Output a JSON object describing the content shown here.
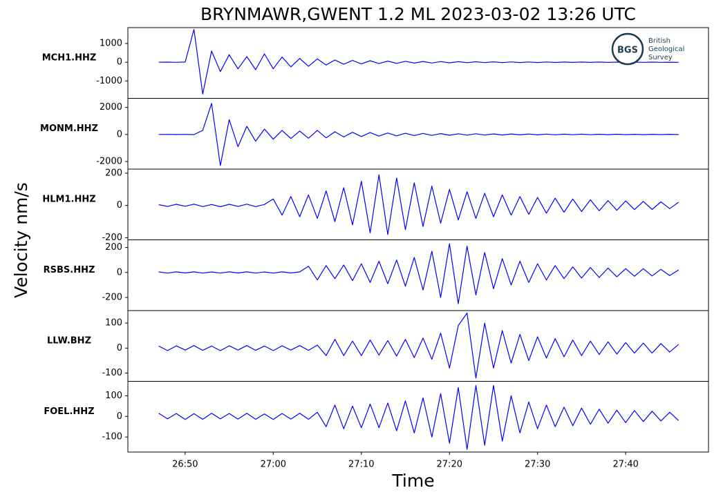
{
  "chart_data": {
    "type": "line",
    "title": "BRYNMAWR,GWENT 1.2 ML   2023-03-02 13:26 UTC",
    "x_label": "Time",
    "y_label": "Velocity nm/s",
    "color": "#0000ff",
    "x": [
      47,
      48,
      49,
      50,
      51,
      52,
      53,
      54,
      55,
      56,
      57,
      58,
      59,
      60,
      61,
      62,
      63,
      64,
      65,
      66,
      67,
      68,
      69,
      70,
      71,
      72,
      73,
      74,
      75,
      76,
      77,
      78,
      79,
      80,
      81,
      82,
      83,
      84,
      85,
      86,
      87,
      88,
      89,
      90,
      91,
      92,
      93,
      94,
      95,
      96,
      97,
      98,
      99,
      100,
      101,
      102,
      103,
      104,
      105,
      106
    ],
    "xlim": [
      43.5,
      109.4
    ],
    "xticks": [
      {
        "value": 50,
        "label": "26:50"
      },
      {
        "value": 60,
        "label": "27:00"
      },
      {
        "value": 70,
        "label": "27:10"
      },
      {
        "value": 80,
        "label": "27:20"
      },
      {
        "value": 90,
        "label": "27:30"
      },
      {
        "value": 100,
        "label": "27:40"
      }
    ],
    "panels": [
      {
        "name": "MCH1.HHZ",
        "ylim": [
          -1930,
          1850
        ],
        "yticks": [
          -1000,
          0,
          1000
        ],
        "values": [
          0,
          5,
          -5,
          10,
          1750,
          -1700,
          600,
          -500,
          400,
          -350,
          300,
          -400,
          450,
          -350,
          280,
          -250,
          200,
          -220,
          180,
          -150,
          120,
          -110,
          100,
          -90,
          80,
          -70,
          60,
          -60,
          50,
          -45,
          40,
          -40,
          35,
          -30,
          30,
          -25,
          25,
          -20,
          20,
          -20,
          18,
          -15,
          15,
          -15,
          12,
          -12,
          10,
          -10,
          10,
          -8,
          8,
          -8,
          6,
          -6,
          6,
          -5,
          5,
          -5,
          4,
          -4
        ]
      },
      {
        "name": "MONM.HHZ",
        "ylim": [
          -2560,
          2670
        ],
        "yticks": [
          -2000,
          0,
          2000
        ],
        "values": [
          0,
          5,
          -5,
          8,
          -10,
          300,
          2300,
          -2300,
          1100,
          -900,
          600,
          -500,
          400,
          -350,
          300,
          -300,
          250,
          -280,
          300,
          -250,
          200,
          -180,
          160,
          -150,
          140,
          -120,
          110,
          -100,
          90,
          -80,
          80,
          -70,
          65,
          -60,
          55,
          -50,
          50,
          -45,
          40,
          -40,
          35,
          -30,
          30,
          -28,
          25,
          -25,
          22,
          -20,
          20,
          -18,
          18,
          -15,
          15,
          -14,
          13,
          -12,
          12,
          -10,
          10,
          -10
        ]
      },
      {
        "name": "HLM1.HHZ",
        "ylim": [
          -213,
          225
        ],
        "yticks": [
          -200,
          0,
          200
        ],
        "values": [
          5,
          -6,
          7,
          -5,
          8,
          -7,
          6,
          -8,
          7,
          -6,
          8,
          -7,
          6,
          40,
          -60,
          55,
          -70,
          65,
          -80,
          90,
          -100,
          110,
          -120,
          150,
          -170,
          190,
          -180,
          170,
          -150,
          140,
          -130,
          120,
          -110,
          100,
          -90,
          85,
          -80,
          75,
          -70,
          65,
          -60,
          55,
          -55,
          50,
          -48,
          45,
          -42,
          40,
          -38,
          35,
          -33,
          30,
          -30,
          28,
          -26,
          25,
          -25,
          22,
          -20,
          20
        ]
      },
      {
        "name": "RSBS.HHZ",
        "ylim": [
          -305,
          261
        ],
        "yticks": [
          -200,
          0,
          200
        ],
        "values": [
          4,
          -5,
          5,
          -4,
          5,
          -5,
          4,
          -5,
          5,
          -4,
          5,
          -5,
          4,
          -5,
          5,
          -4,
          5,
          50,
          -60,
          55,
          -50,
          60,
          -65,
          70,
          -80,
          90,
          -90,
          100,
          -110,
          120,
          -140,
          170,
          -200,
          230,
          -250,
          210,
          -180,
          160,
          -130,
          110,
          -100,
          90,
          -80,
          70,
          -60,
          55,
          -50,
          45,
          -45,
          40,
          -40,
          35,
          -35,
          30,
          -30,
          30,
          -28,
          25,
          -25,
          20
        ]
      },
      {
        "name": "LLW.BHZ",
        "ylim": [
          -133,
          150
        ],
        "yticks": [
          -100,
          0,
          100
        ],
        "values": [
          8,
          -10,
          9,
          -8,
          10,
          -9,
          8,
          -10,
          9,
          -8,
          10,
          -9,
          8,
          -10,
          9,
          -8,
          10,
          -9,
          12,
          -30,
          35,
          -30,
          28,
          -30,
          32,
          -28,
          30,
          -32,
          35,
          -38,
          40,
          -45,
          60,
          -80,
          90,
          140,
          -120,
          100,
          -80,
          70,
          -60,
          55,
          -50,
          45,
          -40,
          38,
          -35,
          32,
          -30,
          28,
          -26,
          25,
          -24,
          22,
          -20,
          20,
          -20,
          18,
          -16,
          15
        ]
      },
      {
        "name": "FOEL.HHZ",
        "ylim": [
          -173,
          170
        ],
        "yticks": [
          -100,
          0,
          100
        ],
        "values": [
          15,
          -12,
          14,
          -15,
          13,
          -14,
          15,
          -12,
          14,
          -13,
          15,
          -14,
          12,
          -15,
          14,
          -13,
          15,
          -14,
          20,
          -50,
          55,
          -60,
          50,
          -55,
          60,
          -55,
          65,
          -70,
          75,
          -80,
          90,
          -100,
          110,
          -130,
          140,
          -160,
          150,
          -140,
          150,
          -120,
          100,
          -80,
          70,
          -60,
          55,
          -50,
          45,
          -45,
          40,
          -38,
          35,
          -33,
          30,
          -30,
          28,
          -25,
          25,
          -22,
          20,
          -20
        ]
      }
    ]
  },
  "logo": {
    "mark": "BGS",
    "lines": [
      "British",
      "Geological",
      "Survey"
    ]
  }
}
